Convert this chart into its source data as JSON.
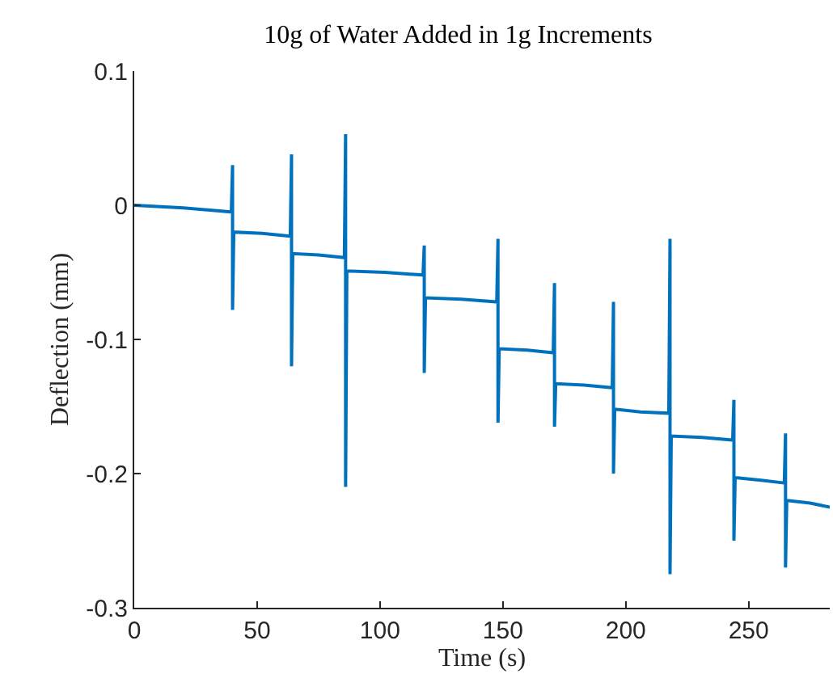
{
  "chart_data": {
    "type": "line",
    "title": "10g of Water Added in 1g Increments",
    "xlabel": "Time (s)",
    "ylabel": "Deflection (mm)",
    "x": [
      0,
      20,
      39.5,
      40,
      40,
      40.5,
      52,
      63.5,
      64,
      64,
      64.5,
      75,
      85.5,
      86,
      86,
      86.5,
      102,
      117.5,
      118,
      118,
      118.5,
      133,
      147.5,
      148,
      148,
      148.5,
      160,
      170.5,
      171,
      171,
      171.5,
      183,
      194.5,
      195,
      195,
      195.5,
      206,
      217.5,
      218,
      218,
      218.5,
      231,
      243.5,
      244,
      244,
      244.5,
      255,
      264.5,
      265,
      265,
      265.5,
      275,
      283
    ],
    "series": [
      {
        "color": "#0072bd",
        "values": [
          0,
          -0.002,
          -0.005,
          0.03,
          -0.078,
          -0.02,
          -0.021,
          -0.023,
          0.038,
          -0.12,
          -0.036,
          -0.037,
          -0.039,
          0.053,
          -0.21,
          -0.049,
          -0.05,
          -0.052,
          -0.03,
          -0.125,
          -0.069,
          -0.07,
          -0.072,
          -0.025,
          -0.162,
          -0.107,
          -0.108,
          -0.11,
          -0.058,
          -0.165,
          -0.133,
          -0.134,
          -0.136,
          -0.072,
          -0.2,
          -0.152,
          -0.154,
          -0.155,
          -0.025,
          -0.275,
          -0.172,
          -0.173,
          -0.175,
          -0.145,
          -0.25,
          -0.203,
          -0.205,
          -0.207,
          -0.17,
          -0.27,
          -0.22,
          -0.222,
          -0.225
        ]
      }
    ],
    "xlim": [
      0,
      283
    ],
    "xticks": [
      0,
      50,
      100,
      150,
      200,
      250
    ],
    "ylim": [
      -0.3,
      0.1
    ],
    "yticks": [
      {
        "value": -0.3,
        "label": "-0.3"
      },
      {
        "value": -0.2,
        "label": "-0.2"
      },
      {
        "value": -0.1,
        "label": "-0.1"
      },
      {
        "value": 0,
        "label": "0"
      },
      {
        "value": 0.1,
        "label": "0.1"
      }
    ],
    "marker": "none",
    "line_style": "solid"
  }
}
